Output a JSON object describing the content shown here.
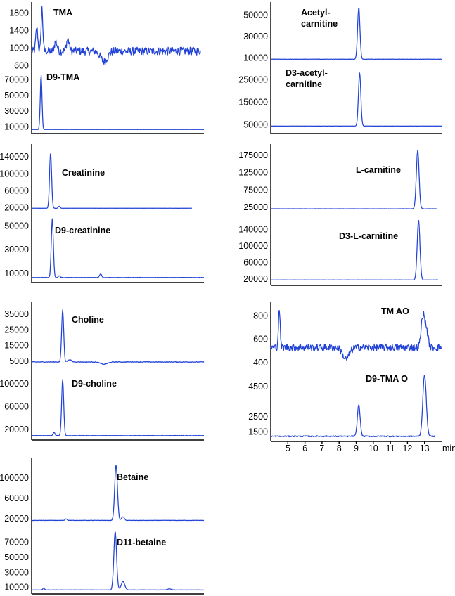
{
  "chart_data": [
    {
      "type": "line",
      "xlim": [
        4,
        14
      ],
      "panels": [
        {
          "name": "TMA",
          "label_lines": [
            "TMA"
          ],
          "yticks": [
            600,
            1000,
            1400,
            1800
          ],
          "ylim": [
            600,
            1950
          ],
          "baseline": 930,
          "noise": 90,
          "peaks": [
            [
              4.3,
              1450,
              0.06
            ],
            [
              4.6,
              1900,
              0.05
            ],
            [
              5.4,
              1150,
              0.08
            ],
            [
              6.1,
              1200,
              0.08
            ],
            [
              8.2,
              700,
              0.2
            ]
          ]
        },
        {
          "name": "D9-TMA",
          "label_lines": [
            "D9-TMA"
          ],
          "yticks": [
            10000,
            30000,
            50000,
            70000
          ],
          "ylim": [
            4000,
            80000
          ],
          "baseline": 6500,
          "noise": 120,
          "peaks": [
            [
              4.55,
              76000,
              0.05
            ]
          ]
        },
        {
          "name": "Creatinine",
          "label_lines": [
            "Creatinine"
          ],
          "yticks": [
            20000,
            60000,
            100000,
            140000
          ],
          "ylim": [
            12000,
            160000
          ],
          "baseline": 19000,
          "noise": 200,
          "peaks": [
            [
              5.1,
              150000,
              0.06
            ],
            [
              5.6,
              24000,
              0.05
            ]
          ]
        },
        {
          "name": "D9-creatinine",
          "label_lines": [
            "D9-creatinine"
          ],
          "yticks": [
            10000,
            30000,
            50000
          ],
          "ylim": [
            4000,
            57000
          ],
          "baseline": 6500,
          "noise": 150,
          "peaks": [
            [
              5.2,
              56000,
              0.06
            ],
            [
              5.6,
              8000,
              0.05
            ],
            [
              8.0,
              9500,
              0.06
            ]
          ]
        },
        {
          "name": "Choline",
          "label_lines": [
            "Choline"
          ],
          "yticks": [
            5000,
            15000,
            25000,
            35000
          ],
          "ylim": [
            0,
            40000
          ],
          "baseline": 4500,
          "noise": 200,
          "peaks": [
            [
              5.8,
              38000,
              0.06
            ],
            [
              6.2,
              6000,
              0.1
            ],
            [
              8.2,
              3000,
              0.2
            ]
          ]
        },
        {
          "name": "D9-choline",
          "label_lines": [
            "D9-choline"
          ],
          "yticks": [
            20000,
            60000,
            100000
          ],
          "ylim": [
            5000,
            115000
          ],
          "baseline": 9000,
          "noise": 300,
          "peaks": [
            [
              5.3,
              15000,
              0.05
            ],
            [
              5.8,
              108000,
              0.06
            ]
          ]
        },
        {
          "name": "Betaine",
          "label_lines": [
            "Betaine"
          ],
          "yticks": [
            20000,
            60000,
            100000
          ],
          "ylim": [
            10000,
            130000
          ],
          "baseline": 17000,
          "noise": 300,
          "peaks": [
            [
              6.0,
              20000,
              0.06
            ],
            [
              8.9,
              125000,
              0.08
            ],
            [
              9.3,
              24000,
              0.08
            ]
          ]
        },
        {
          "name": "D11-betaine",
          "label_lines": [
            "D11-betaine"
          ],
          "yticks": [
            10000,
            30000,
            50000,
            70000
          ],
          "ylim": [
            4000,
            86000
          ],
          "baseline": 6500,
          "noise": 200,
          "peaks": [
            [
              4.7,
              9000,
              0.05
            ],
            [
              8.85,
              84000,
              0.08
            ],
            [
              9.3,
              18000,
              0.1
            ],
            [
              12.0,
              8000,
              0.1
            ]
          ]
        },
        {
          "name": "Acetyl-carnitine",
          "label_lines": [
            "Acetyl-",
            "carnitine"
          ],
          "yticks": [
            10000,
            30000,
            50000
          ],
          "ylim": [
            3000,
            58000
          ],
          "baseline": 9000,
          "noise": 150,
          "peaks": [
            [
              9.15,
              57000,
              0.07
            ]
          ]
        },
        {
          "name": "D3-acetyl-carnitine",
          "label_lines": [
            "D3-acetyl-",
            "carnitine"
          ],
          "yticks": [
            50000,
            150000,
            250000
          ],
          "ylim": [
            20000,
            285000
          ],
          "baseline": 44000,
          "noise": 300,
          "peaks": [
            [
              9.2,
              282000,
              0.07
            ]
          ]
        },
        {
          "name": "L-carnitine",
          "label_lines": [
            "L-carnitine"
          ],
          "yticks": [
            25000,
            75000,
            125000,
            175000
          ],
          "ylim": [
            10000,
            195000
          ],
          "baseline": 21000,
          "noise": 250,
          "peaks": [
            [
              12.6,
              190000,
              0.08
            ]
          ]
        },
        {
          "name": "D3-L-carnitine",
          "label_lines": [
            "D3-L-carnitine"
          ],
          "yticks": [
            20000,
            60000,
            100000,
            140000
          ],
          "ylim": [
            10000,
            165000
          ],
          "baseline": 18000,
          "noise": 250,
          "peaks": [
            [
              12.65,
              162000,
              0.08
            ]
          ]
        },
        {
          "name": "TMAO",
          "label_lines": [
            "TM AO"
          ],
          "yticks": [
            400,
            600,
            800
          ],
          "ylim": [
            340,
            880
          ],
          "baseline": 530,
          "noise": 30,
          "peaks": [
            [
              4.5,
              860,
              0.05
            ],
            [
              8.4,
              430,
              0.2
            ],
            [
              12.9,
              790,
              0.1
            ],
            [
              13.1,
              680,
              0.1
            ]
          ]
        },
        {
          "name": "D9-TMAO",
          "label_lines": [
            "D9-TMA O"
          ],
          "yticks": [
            1500,
            2500,
            4500
          ],
          "ylim": [
            1000,
            5200
          ],
          "baseline": 1200,
          "noise": 40,
          "peaks": [
            [
              9.15,
              3300,
              0.08
            ],
            [
              13.0,
              5300,
              0.1
            ]
          ]
        }
      ],
      "xticks": [
        5,
        6,
        7,
        8,
        9,
        10,
        11,
        12,
        13
      ],
      "xlabel": "min",
      "line_color": "#2243d6"
    }
  ]
}
